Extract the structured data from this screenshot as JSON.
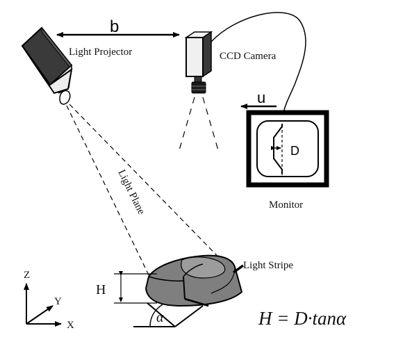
{
  "labels": {
    "baseline": "b",
    "projector": "Light Projector",
    "camera": "CCD Camera",
    "displacement": "u",
    "offset": "D",
    "monitor": "Monitor",
    "light_plane": "Light Plane",
    "light_stripe": "Light Stripe",
    "height": "H",
    "angle": "α"
  },
  "axes": {
    "z": "Z",
    "y": "Y",
    "x": "X"
  },
  "formula": "H = D·tanα"
}
